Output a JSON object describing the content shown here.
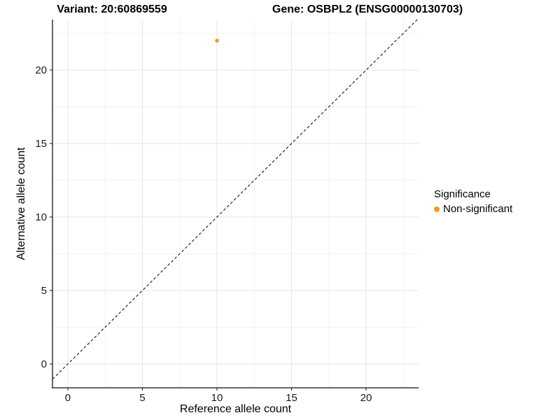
{
  "header": {
    "title_left": "Variant: 20:60869559",
    "title_right": "Gene: OSBPL2 (ENSG00000130703)"
  },
  "chart_data": {
    "type": "scatter",
    "title": "Variant: 20:60869559    Gene: OSBPL2 (ENSG00000130703)",
    "xlabel": "Reference allele count",
    "ylabel": "Alternative allele count",
    "xlim": [
      -1.03,
      23.52
    ],
    "ylim": [
      -1.62,
      23.43
    ],
    "xticks": [
      0,
      5,
      10,
      15,
      20
    ],
    "yticks": [
      0,
      5,
      10,
      15,
      20
    ],
    "xminor": [
      2.5,
      7.5,
      12.5,
      17.5,
      22.5
    ],
    "yminor": [
      2.5,
      7.5,
      12.5,
      17.5,
      22.5
    ],
    "grid": "major+minor",
    "legend_position": "right",
    "reference_line": {
      "kind": "identity",
      "slope": 1,
      "intercept": 0,
      "style": "dashed",
      "color": "#000000"
    },
    "series": [
      {
        "name": "Non-significant",
        "color": "#F8991D",
        "points": [
          {
            "x": 10,
            "y": 22
          }
        ]
      }
    ],
    "legend": {
      "title": "Significance",
      "entries": [
        {
          "label": "Non-significant",
          "color": "#F8991D",
          "marker": "circle-icon"
        }
      ]
    }
  },
  "colors": {
    "background": "#FFFFFF",
    "panel_background": "#FFFFFF",
    "grid_major": "#E6E6E6",
    "grid_minor": "#F2F2F2",
    "axis_line": "#333333",
    "tick_text": "#1A1A1A",
    "point": "#F8991D",
    "reference_line": "#000000"
  }
}
